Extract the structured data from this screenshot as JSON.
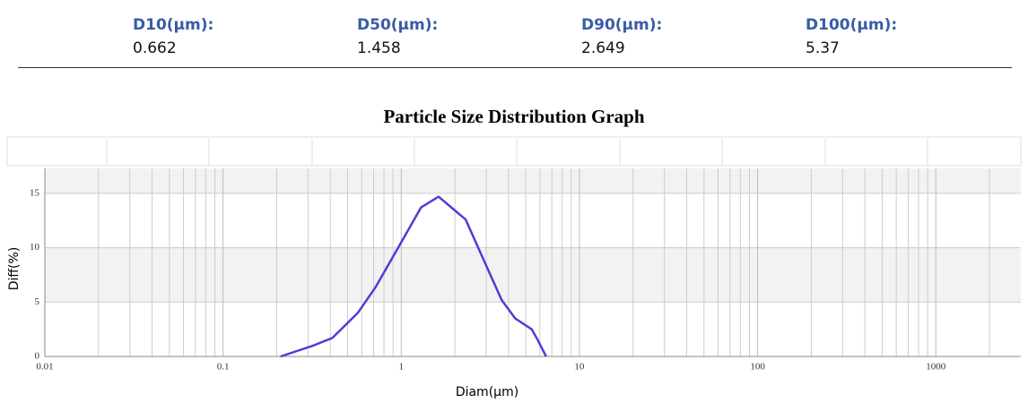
{
  "stats": [
    {
      "label": "D10(µm):",
      "value": 0.662
    },
    {
      "label": "D50(µm):",
      "value": 1.458
    },
    {
      "label": "D90(µm):",
      "value": 2.649
    },
    {
      "label": "D100(µm):",
      "value": 5.37
    }
  ],
  "chart_data": {
    "type": "line",
    "title": "Particle Size Distribution Graph",
    "x_label": "Diam(µm)",
    "y_label": "Diff(%)",
    "x": [
      0.21,
      0.32,
      0.41,
      0.57,
      0.72,
      1.0,
      1.29,
      1.62,
      2.3,
      2.9,
      3.66,
      4.36,
      5.4,
      5.8,
      6.5
    ],
    "series": [
      {
        "color": "#4b3fd6",
        "values": [
          0,
          1.0,
          1.7,
          4.0,
          6.4,
          10.5,
          13.7,
          14.7,
          12.6,
          8.9,
          5.2,
          3.5,
          2.5,
          1.6,
          0
        ]
      }
    ],
    "log_x": true,
    "xlim": [
      0.01,
      3000
    ],
    "xticks": [
      0.01,
      0.1,
      1,
      10,
      100,
      1000
    ],
    "ylim": [
      0,
      17.3
    ],
    "yticks": [
      0,
      5,
      10,
      15
    ],
    "grid": true
  }
}
